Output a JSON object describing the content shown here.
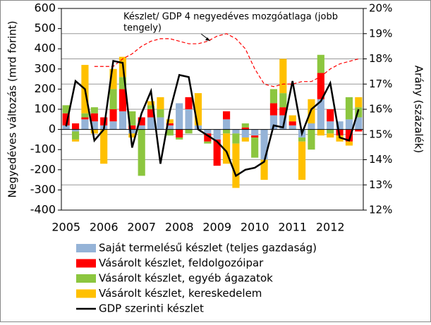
{
  "chart_data": {
    "type": "stacked-bar-line",
    "y_label": "Negyedéves változás (mrd forint)",
    "y2_label": "Arány (százalék)",
    "annotation": [
      "Készlet/ GDP 4 negyedéves mozgóatlaga (jobb",
      "tengely)"
    ],
    "categories": [
      "2005",
      null,
      null,
      null,
      "2006",
      null,
      null,
      null,
      "2007",
      null,
      null,
      null,
      "2008",
      null,
      null,
      null,
      "2009",
      null,
      null,
      null,
      "2010",
      null,
      null,
      null,
      "2011",
      null,
      null,
      null,
      "2012",
      null,
      null,
      null
    ],
    "ylim": [
      -400,
      600
    ],
    "yticks": [
      -400,
      -300,
      -200,
      -100,
      0,
      100,
      200,
      300,
      400,
      500,
      600
    ],
    "y2lim": [
      12,
      20
    ],
    "y2ticks": [
      {
        "value": 12,
        "label": "12%"
      },
      {
        "value": 13,
        "label": "13%"
      },
      {
        "value": 14,
        "label": "14%"
      },
      {
        "value": 15,
        "label": "15%"
      },
      {
        "value": 16,
        "label": "16%"
      },
      {
        "value": 17,
        "label": "17%"
      },
      {
        "value": 18,
        "label": "18%"
      },
      {
        "value": 19,
        "label": "19%"
      },
      {
        "value": 20,
        "label": "20%"
      }
    ],
    "grid": true,
    "series": [
      {
        "name": "Saját termelésű készlet (teljes gazdaság)",
        "color": "#95b3d7",
        "values": [
          20,
          -10,
          50,
          40,
          20,
          40,
          90,
          -20,
          20,
          60,
          60,
          20,
          130,
          100,
          20,
          -20,
          -50,
          50,
          -20,
          -40,
          -30,
          -150,
          70,
          70,
          20,
          -40,
          30,
          150,
          40,
          40,
          50,
          60
        ]
      },
      {
        "name": "Vásárolt készlet, feldolgozóipar",
        "color": "#ff0000",
        "values": [
          60,
          30,
          10,
          40,
          40,
          60,
          110,
          20,
          40,
          40,
          0,
          10,
          -40,
          60,
          0,
          -40,
          -130,
          40,
          0,
          10,
          -10,
          0,
          60,
          40,
          20,
          0,
          0,
          130,
          60,
          -30,
          -60,
          -10
        ]
      },
      {
        "name": "Vásárolt készlet, egyéb ágazatok",
        "color": "#8cc63f",
        "values": [
          40,
          -40,
          20,
          30,
          0,
          100,
          60,
          70,
          -230,
          20,
          40,
          -30,
          -10,
          -20,
          0,
          -10,
          0,
          -20,
          -50,
          20,
          -100,
          0,
          70,
          70,
          0,
          -20,
          -100,
          90,
          -20,
          0,
          110,
          50
        ]
      },
      {
        "name": "Vásárolt készlet, kereskedelem",
        "color": "#ffc000",
        "values": [
          0,
          -10,
          240,
          -20,
          -170,
          100,
          100,
          -20,
          0,
          20,
          60,
          20,
          0,
          0,
          160,
          0,
          0,
          -150,
          -220,
          -20,
          0,
          -100,
          0,
          170,
          30,
          -190,
          120,
          -30,
          -20,
          -30,
          -20,
          50
        ]
      }
    ],
    "line": {
      "name": "GDP szerinti készlet",
      "color": "#000000",
      "values": [
        15,
        240,
        200,
        -55,
        0,
        340,
        330,
        -90,
        80,
        190,
        -170,
        90,
        270,
        260,
        0,
        -30,
        -60,
        -110,
        -230,
        -200,
        -190,
        -160,
        20,
        10,
        240,
        -20,
        100,
        140,
        230,
        -40,
        -55,
        100
      ]
    },
    "ratio": {
      "color": "#ff0000",
      "axis": "y2",
      "values": [
        null,
        null,
        null,
        17.7,
        17.7,
        17.7,
        18.0,
        18.2,
        18.5,
        18.7,
        18.8,
        18.8,
        18.7,
        18.6,
        18.6,
        18.7,
        18.9,
        19.0,
        18.8,
        18.4,
        17.6,
        17.0,
        16.9,
        17.0,
        17.0,
        17.1,
        17.1,
        17.3,
        17.6,
        17.8,
        17.9,
        18.0
      ]
    }
  }
}
